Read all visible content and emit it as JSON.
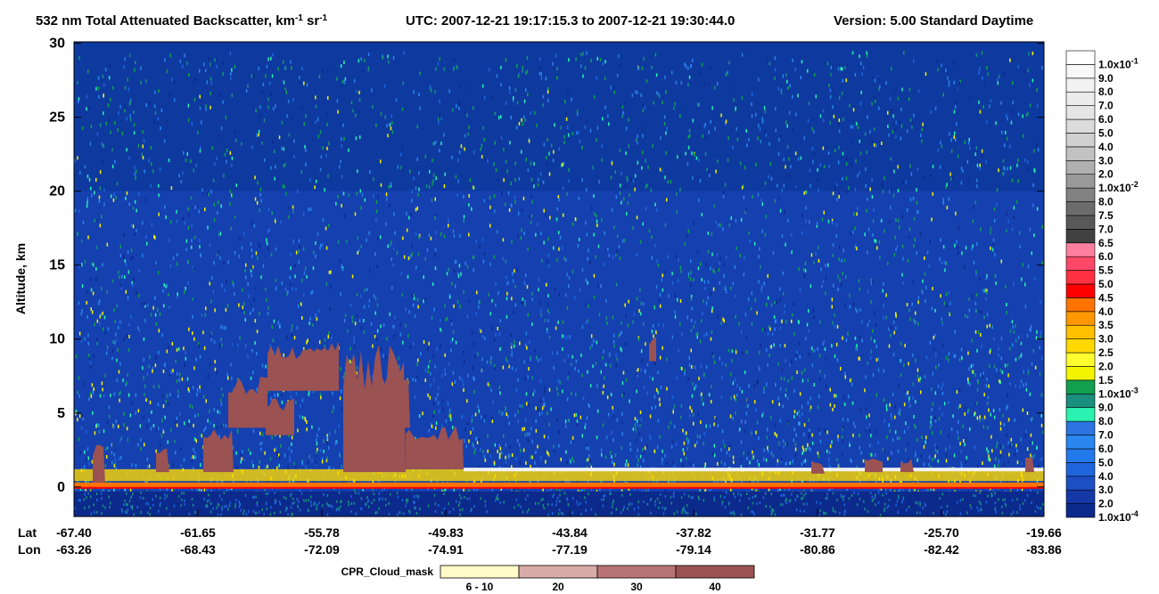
{
  "chart_data": {
    "type": "curtain",
    "title_segments": [
      "532 nm Total Attenuated Backscatter, km",
      "-1",
      " sr",
      "-1"
    ],
    "time_range": "UTC:  2007-12-21 19:17:15.3  to  2007-12-21 19:30:44.0",
    "version": "Version: 5.00  Standard  Daytime",
    "ylabel": "Altitude, km",
    "ylim": [
      -2,
      30.1
    ],
    "yticks": [
      0,
      5,
      10,
      15,
      20,
      25,
      30
    ],
    "x_rows": [
      {
        "name": "Lat",
        "values": [
          "-67.40",
          "-61.65",
          "-55.78",
          "-49.83",
          "-43.84",
          "-37.82",
          "-31.77",
          "-25.70",
          "-19.66"
        ]
      },
      {
        "name": "Lon",
        "values": [
          "-63.26",
          "-68.43",
          "-72.09",
          "-74.91",
          "-77.19",
          "-79.14",
          "-80.86",
          "-82.42",
          "-83.86"
        ]
      }
    ],
    "colorbar": [
      {
        "label": "1.0x10",
        "sup": "-4",
        "color": "#0b2a8c"
      },
      {
        "label": "2.0",
        "color": "#1438a6"
      },
      {
        "label": "3.0",
        "color": "#1c4fc4"
      },
      {
        "label": "4.0",
        "color": "#1f66dc"
      },
      {
        "label": "5.0",
        "color": "#2279ea"
      },
      {
        "label": "6.0",
        "color": "#2a86f0"
      },
      {
        "label": "7.0",
        "color": "#2d74e2"
      },
      {
        "label": "8.0",
        "color": "#2af2b0"
      },
      {
        "label": "9.0",
        "color": "#1a8f7e"
      },
      {
        "label": "1.0x10",
        "sup": "-3",
        "color": "#12a04e"
      },
      {
        "label": "1.5",
        "color": "#f4f400"
      },
      {
        "label": "2.0",
        "color": "#ffff30"
      },
      {
        "label": "2.5",
        "color": "#ffd800"
      },
      {
        "label": "3.0",
        "color": "#ffc000"
      },
      {
        "label": "3.5",
        "color": "#ff9800"
      },
      {
        "label": "4.0",
        "color": "#ff7400"
      },
      {
        "label": "4.5",
        "color": "#ff0000"
      },
      {
        "label": "5.0",
        "color": "#ff3040"
      },
      {
        "label": "5.5",
        "color": "#ff4868"
      },
      {
        "label": "6.0",
        "color": "#ff80a0"
      },
      {
        "label": "6.5",
        "color": "#404040"
      },
      {
        "label": "7.0",
        "color": "#585858"
      },
      {
        "label": "7.5",
        "color": "#6c6c6c"
      },
      {
        "label": "8.0",
        "color": "#828282"
      },
      {
        "label": "1.0x10",
        "sup": "-2",
        "color": "#9a9a9a"
      },
      {
        "label": "2.0",
        "color": "#b0b0b0"
      },
      {
        "label": "3.0",
        "color": "#c2c2c2"
      },
      {
        "label": "4.0",
        "color": "#d0d0d0"
      },
      {
        "label": "5.0",
        "color": "#dcdcdc"
      },
      {
        "label": "6.0",
        "color": "#e5e5e5"
      },
      {
        "label": "7.0",
        "color": "#ececec"
      },
      {
        "label": "8.0",
        "color": "#f2f2f2"
      },
      {
        "label": "9.0",
        "color": "#f8f8f8"
      },
      {
        "label": "1.0x10",
        "sup": "-1",
        "color": "#ffffff"
      }
    ],
    "cpr_legend": {
      "title": "CPR_Cloud_mask",
      "entries": [
        {
          "label": "6 - 10",
          "color": "#fffac8"
        },
        {
          "label": "20",
          "color": "#d8aaa8"
        },
        {
          "label": "30",
          "color": "#b87474"
        },
        {
          "label": "40",
          "color": "#9a5252"
        }
      ]
    }
  }
}
